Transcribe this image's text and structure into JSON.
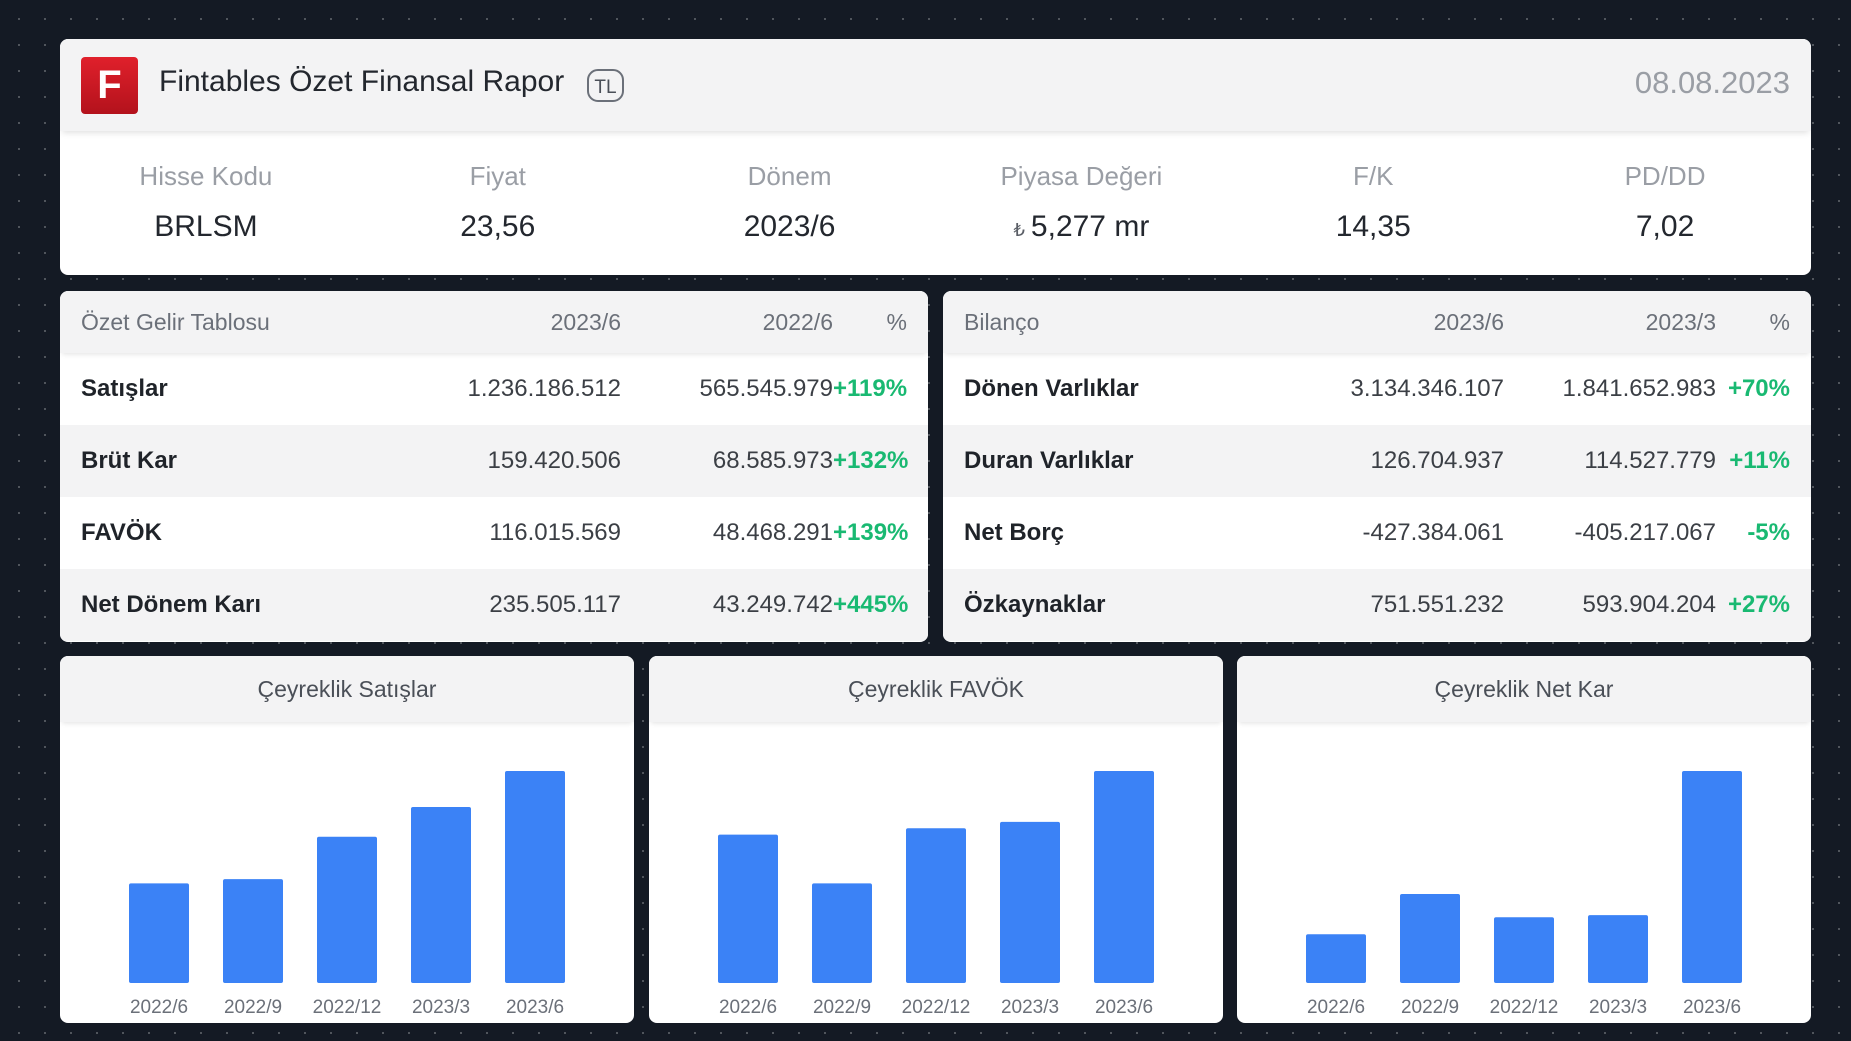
{
  "header": {
    "logo_letter": "F",
    "title": "Fintables Özet Finansal Rapor",
    "currency_badge": "TL",
    "date": "08.08.2023"
  },
  "metrics": [
    {
      "label": "Hisse Kodu",
      "value": "BRLSM"
    },
    {
      "label": "Fiyat",
      "value": "23,56"
    },
    {
      "label": "Dönem",
      "value": "2023/6"
    },
    {
      "label": "Piyasa Değeri",
      "symbol": "₺",
      "value": "5,277 mr"
    },
    {
      "label": "F/K",
      "value": "14,35"
    },
    {
      "label": "PD/DD",
      "value": "7,02"
    }
  ],
  "income": {
    "headers": [
      "Özet Gelir Tablosu",
      "2023/6",
      "2022/6",
      "%"
    ],
    "rows": [
      [
        "Satışlar",
        "1.236.186.512",
        "565.545.979",
        "+119%"
      ],
      [
        "Brüt Kar",
        "159.420.506",
        "68.585.973",
        "+132%"
      ],
      [
        "FAVÖK",
        "116.015.569",
        "48.468.291",
        "+139%"
      ],
      [
        "Net Dönem Karı",
        "235.505.117",
        "43.249.742",
        "+445%"
      ]
    ]
  },
  "balance": {
    "headers": [
      "Bilanço",
      "2023/6",
      "2023/3",
      "%"
    ],
    "rows": [
      [
        "Dönen Varlıklar",
        "3.134.346.107",
        "1.841.652.983",
        "+70%"
      ],
      [
        "Duran Varlıklar",
        "126.704.937",
        "114.527.779",
        "+11%"
      ],
      [
        "Net Borç",
        "-427.384.061",
        "-405.217.067",
        "-5%"
      ],
      [
        "Özkaynaklar",
        "751.551.232",
        "593.904.204",
        "+27%"
      ]
    ]
  },
  "colors": {
    "bar": "#3b82f6",
    "positive": "#19b972"
  },
  "chart_data": [
    {
      "type": "bar",
      "title": "Çeyreklik Satışlar",
      "categories": [
        "2022/6",
        "2022/9",
        "2022/12",
        "2023/3",
        "2023/6"
      ],
      "values": [
        47,
        49,
        69,
        83,
        100
      ],
      "ylim": [
        0,
        100
      ],
      "grid": false
    },
    {
      "type": "bar",
      "title": "Çeyreklik FAVÖK",
      "categories": [
        "2022/6",
        "2022/9",
        "2022/12",
        "2023/3",
        "2023/6"
      ],
      "values": [
        70,
        47,
        73,
        76,
        100
      ],
      "ylim": [
        0,
        100
      ],
      "grid": false
    },
    {
      "type": "bar",
      "title": "Çeyreklik Net Kar",
      "categories": [
        "2022/6",
        "2022/9",
        "2022/12",
        "2023/3",
        "2023/6"
      ],
      "values": [
        23,
        42,
        31,
        32,
        100
      ],
      "ylim": [
        0,
        100
      ],
      "grid": false
    }
  ]
}
